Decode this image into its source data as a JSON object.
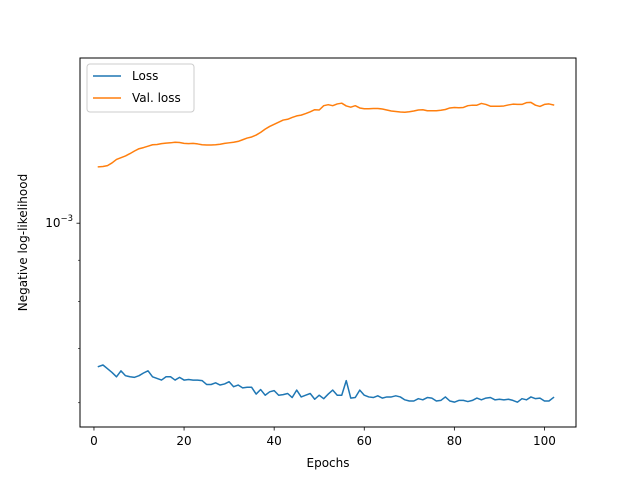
{
  "chart_data": {
    "type": "line",
    "title": "",
    "xlabel": "Epochs",
    "ylabel": "Negative log-likelihood",
    "xlim": [
      -3.1,
      107
    ],
    "xticks": [
      0,
      20,
      40,
      60,
      80,
      100
    ],
    "xtick_labels": [
      "0",
      "20",
      "40",
      "60",
      "80",
      "100"
    ],
    "y_scale": "log",
    "ylim": [
      0.00056,
      0.0016
    ],
    "yticks": [
      0.001
    ],
    "ytick_labels": [
      "10",
      "−3"
    ],
    "grid": false,
    "legend_position": "top-left",
    "series": [
      {
        "name": "Loss",
        "color": "#1f77b4",
        "x": [
          1,
          2,
          3,
          4,
          5,
          6,
          7,
          8,
          9,
          10,
          11,
          12,
          13,
          14,
          15,
          16,
          17,
          18,
          19,
          20,
          21,
          22,
          23,
          24,
          25,
          26,
          27,
          28,
          29,
          30,
          31,
          32,
          33,
          34,
          35,
          36,
          37,
          38,
          39,
          40,
          41,
          42,
          43,
          44,
          45,
          46,
          47,
          48,
          49,
          50,
          51,
          52,
          53,
          54,
          55,
          56,
          57,
          58,
          59,
          60,
          61,
          62,
          63,
          64,
          65,
          66,
          67,
          68,
          69,
          70,
          71,
          72,
          73,
          74,
          75,
          76,
          77,
          78,
          79,
          80,
          81,
          82,
          83,
          84,
          85,
          86,
          87,
          88,
          89,
          90,
          91,
          92,
          93,
          94,
          95,
          96,
          97,
          98,
          99,
          100,
          101,
          102
        ],
        "y": [
          0.000665,
          0.000668,
          0.000661,
          0.000654,
          0.000646,
          0.000657,
          0.000648,
          0.000646,
          0.000645,
          0.000648,
          0.000653,
          0.000657,
          0.000646,
          0.000643,
          0.00064,
          0.000646,
          0.000646,
          0.00064,
          0.000645,
          0.00064,
          0.000641,
          0.00064,
          0.00064,
          0.000639,
          0.000632,
          0.000632,
          0.000635,
          0.000631,
          0.000633,
          0.000637,
          0.000628,
          0.000631,
          0.000626,
          0.000627,
          0.000627,
          0.000615,
          0.000623,
          0.000613,
          0.000619,
          0.000621,
          0.000613,
          0.000614,
          0.000616,
          0.000609,
          0.000622,
          0.00061,
          0.000613,
          0.000616,
          0.000606,
          0.000613,
          0.000607,
          0.000615,
          0.000622,
          0.000613,
          0.000613,
          0.000639,
          0.000608,
          0.000609,
          0.000622,
          0.000613,
          0.00061,
          0.000609,
          0.000612,
          0.000608,
          0.00061,
          0.00061,
          0.000612,
          0.00061,
          0.000605,
          0.000603,
          0.000603,
          0.000607,
          0.000605,
          0.000609,
          0.000608,
          0.000603,
          0.000604,
          0.00061,
          0.000603,
          0.000601,
          0.000604,
          0.000604,
          0.000602,
          0.000604,
          0.000608,
          0.000605,
          0.000608,
          0.000609,
          0.000605,
          0.000606,
          0.000605,
          0.000606,
          0.000604,
          0.000601,
          0.000607,
          0.000605,
          0.00061,
          0.000607,
          0.000608,
          0.000603,
          0.000603,
          0.000609
        ]
      },
      {
        "name": "Val. loss",
        "color": "#ff7f0e",
        "x": [
          1,
          2,
          3,
          4,
          5,
          6,
          7,
          8,
          9,
          10,
          11,
          12,
          13,
          14,
          15,
          16,
          17,
          18,
          19,
          20,
          21,
          22,
          23,
          24,
          25,
          26,
          27,
          28,
          29,
          30,
          31,
          32,
          33,
          34,
          35,
          36,
          37,
          38,
          39,
          40,
          41,
          42,
          43,
          44,
          45,
          46,
          47,
          48,
          49,
          50,
          51,
          52,
          53,
          54,
          55,
          56,
          57,
          58,
          59,
          60,
          61,
          62,
          63,
          64,
          65,
          66,
          67,
          68,
          69,
          70,
          71,
          72,
          73,
          74,
          75,
          76,
          77,
          78,
          79,
          80,
          81,
          82,
          83,
          84,
          85,
          86,
          87,
          88,
          89,
          90,
          91,
          92,
          93,
          94,
          95,
          96,
          97,
          98,
          99,
          100,
          101,
          102
        ],
        "y": [
          0.001174,
          0.001175,
          0.001178,
          0.001187,
          0.001199,
          0.001205,
          0.001211,
          0.001219,
          0.001228,
          0.001236,
          0.00124,
          0.001245,
          0.00125,
          0.001251,
          0.001254,
          0.001256,
          0.001257,
          0.001259,
          0.001258,
          0.001255,
          0.001254,
          0.001255,
          0.001253,
          0.00125,
          0.001249,
          0.001249,
          0.00125,
          0.001252,
          0.001255,
          0.001257,
          0.001259,
          0.001262,
          0.001268,
          0.001274,
          0.001278,
          0.001285,
          0.001295,
          0.001307,
          0.001317,
          0.001325,
          0.001333,
          0.001341,
          0.001344,
          0.001351,
          0.001357,
          0.00136,
          0.001366,
          0.001373,
          0.001381,
          0.00138,
          0.001397,
          0.001401,
          0.001397,
          0.001404,
          0.001407,
          0.001396,
          0.001391,
          0.001397,
          0.001388,
          0.001385,
          0.001385,
          0.001386,
          0.001386,
          0.001384,
          0.00138,
          0.001376,
          0.001374,
          0.001372,
          0.001371,
          0.001373,
          0.001376,
          0.00138,
          0.001381,
          0.001377,
          0.001377,
          0.001377,
          0.001379,
          0.001382,
          0.001388,
          0.00139,
          0.001389,
          0.00139,
          0.001397,
          0.001399,
          0.001399,
          0.001406,
          0.001402,
          0.001395,
          0.001395,
          0.001395,
          0.001396,
          0.0014,
          0.001403,
          0.001402,
          0.001402,
          0.001409,
          0.00141,
          0.001399,
          0.001394,
          0.001402,
          0.001404,
          0.0014
        ]
      }
    ]
  }
}
